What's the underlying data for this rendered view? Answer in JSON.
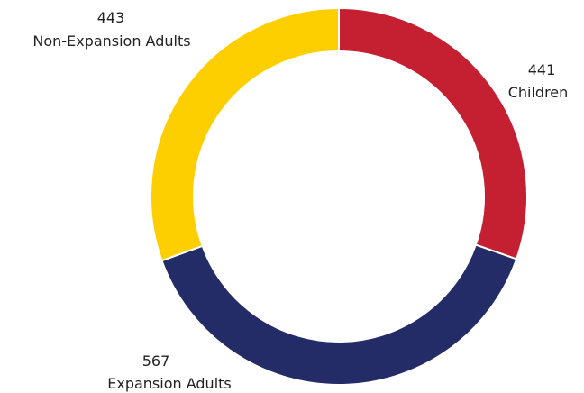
{
  "chart_data": {
    "type": "pie",
    "variant": "donut",
    "title": "",
    "categories": [
      "Children",
      "Expansion Adults",
      "Non-Expansion Adults"
    ],
    "values": [
      441,
      567,
      443
    ],
    "colors": [
      "#C42032",
      "#242C67",
      "#FDCE00"
    ],
    "value_labels": [
      "441",
      "567",
      "443"
    ],
    "legend": "none",
    "start_angle_deg": 0,
    "direction": "clockwise"
  }
}
